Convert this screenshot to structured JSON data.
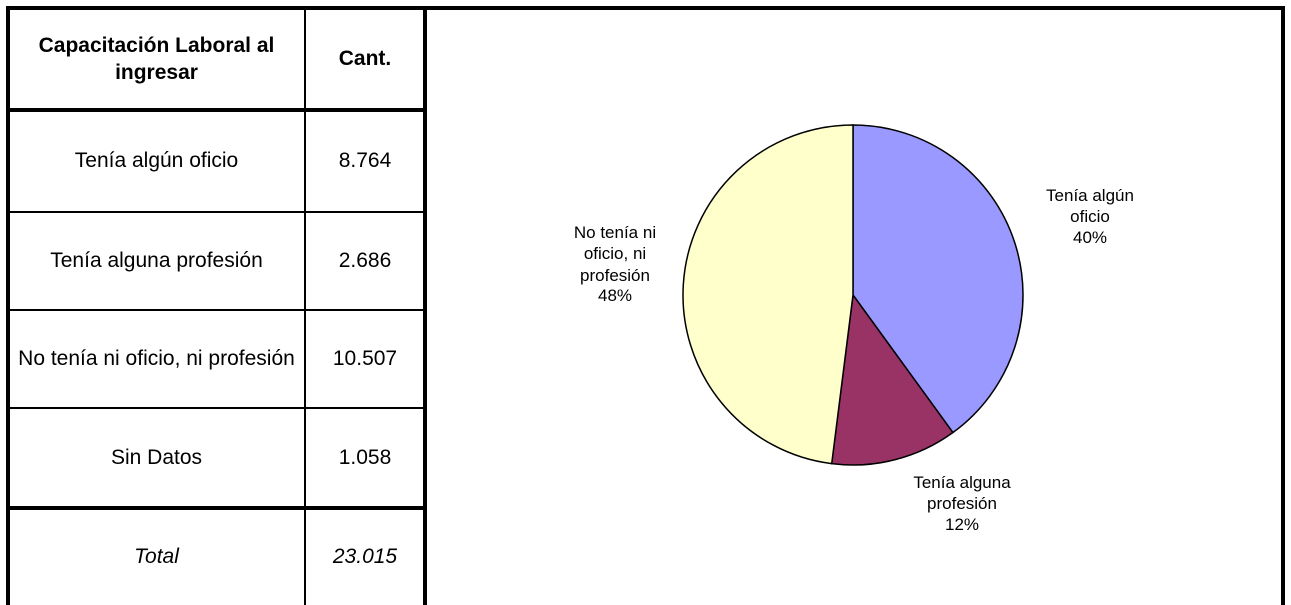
{
  "table": {
    "header": [
      "Capacitación Laboral al ingresar",
      "Cant."
    ],
    "rows": [
      [
        "Tenía algún oficio",
        "8.764"
      ],
      [
        "Tenía alguna profesión",
        "2.686"
      ],
      [
        "No tenía ni oficio, ni profesión",
        "10.507"
      ],
      [
        "Sin Datos",
        "1.058"
      ]
    ],
    "total": [
      "Total",
      "23.015"
    ]
  },
  "chart_data": {
    "type": "pie",
    "categories": [
      "Tenía algún oficio",
      "Tenía alguna profesión",
      "No tenía ni oficio, ni profesión"
    ],
    "values": [
      40,
      12,
      48
    ],
    "value_labels": [
      "40%",
      "12%",
      "48%"
    ],
    "colors": [
      "#9999ff",
      "#993366",
      "#ffffcc"
    ]
  }
}
